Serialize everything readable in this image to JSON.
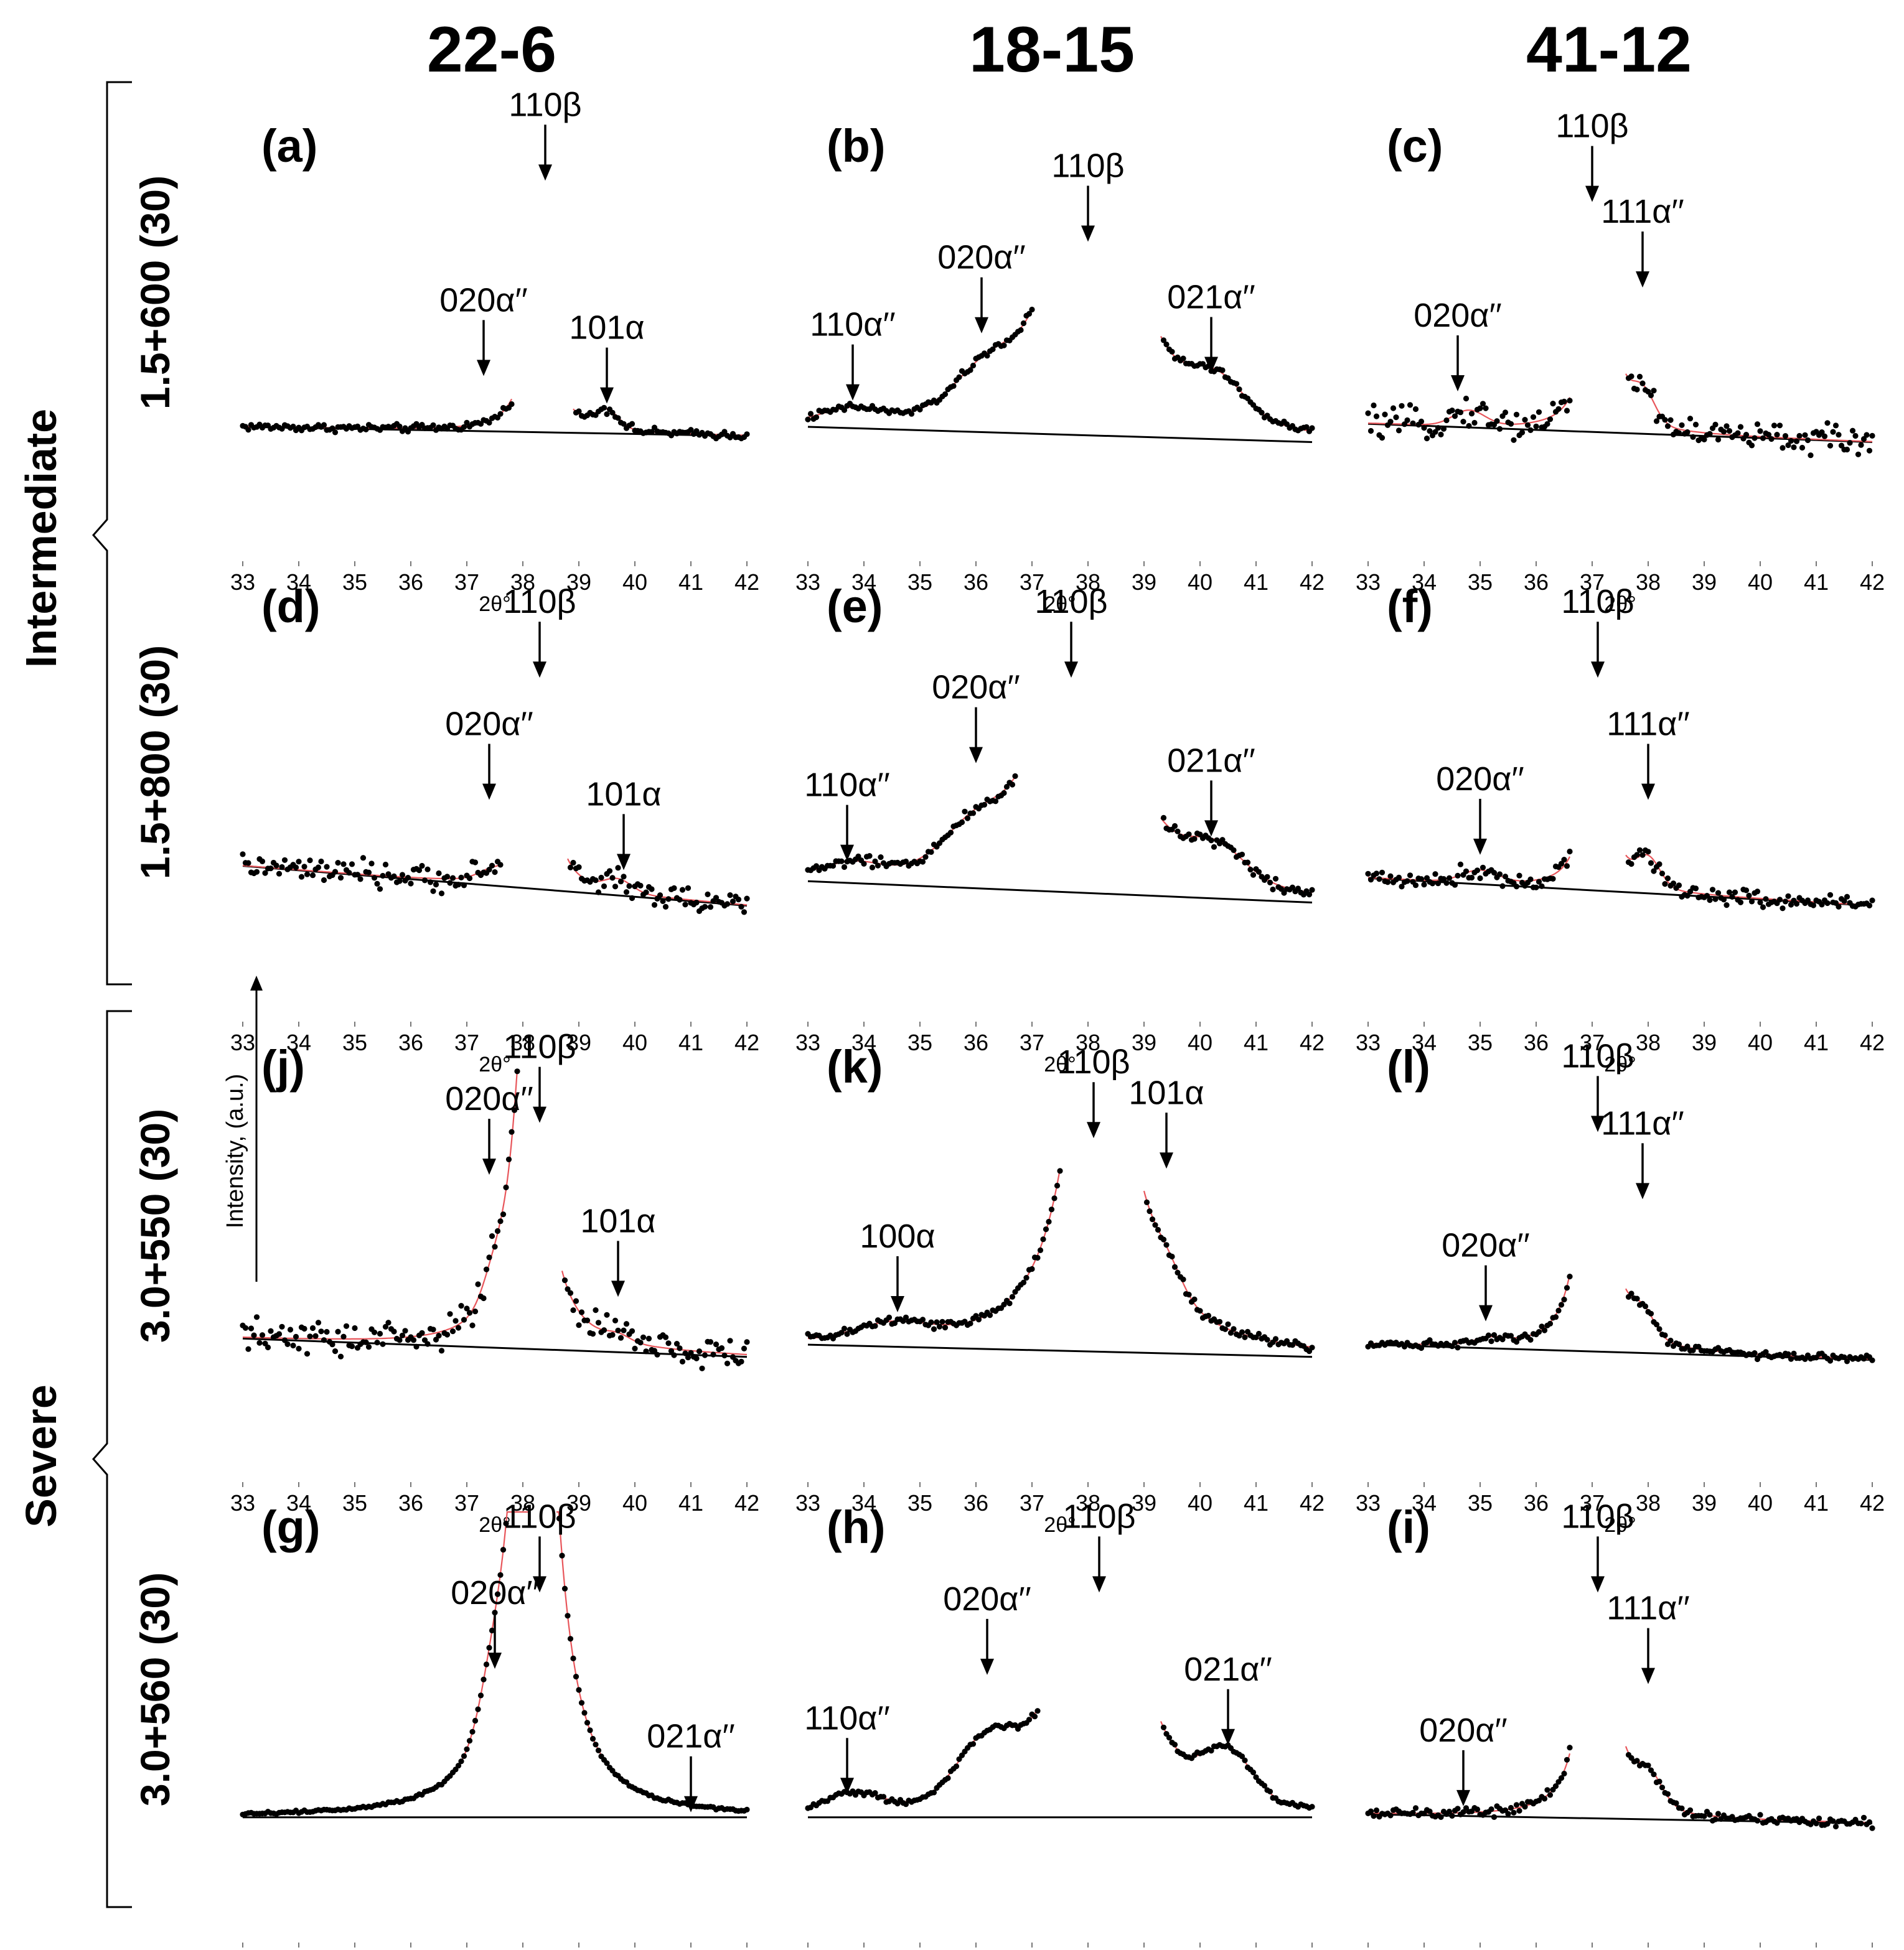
{
  "chart_data": {
    "type": "scatter",
    "layout": "3x4 grid of XRD patterns; columns = alloy, rows = treatment",
    "columns": [
      "22-6",
      "18-15",
      "41-12"
    ],
    "rows": [
      "1.5+600 (30)",
      "1.5+800 (30)",
      "3.0+550 (30)",
      "3.0+560 (30)"
    ],
    "groups": [
      {
        "name": "Intermediate",
        "rows": [
          0,
          1
        ]
      },
      {
        "name": "Severe",
        "rows": [
          2,
          3
        ]
      }
    ],
    "xlabel": "2θ°",
    "ylabel": "Intensity, (a.u.)",
    "x_ticks": [
      33,
      34,
      35,
      36,
      37,
      38,
      39,
      40,
      41,
      42
    ],
    "xlim": [
      33,
      42
    ],
    "series_style": {
      "points": "#000000",
      "fit": "#e8555a",
      "background": "#000000"
    },
    "panels": [
      {
        "id": "(a)",
        "row": 0,
        "col": 0,
        "kind": "A",
        "bg": [
          33,
          0.03,
          42,
          0.0
        ],
        "peak_x": 38.3,
        "peak_w": 0.18,
        "peak_h": 0.18,
        "gap": [
          37.8,
          38.9
        ],
        "extra_peaks": [
          {
            "x": 37.3,
            "h": 0.0,
            "w": 0.3
          },
          {
            "x": 39.5,
            "h": 0.06,
            "w": 0.3
          }
        ],
        "noise": 0.008,
        "annotations": [
          {
            "label": "110β",
            "x": 38.4,
            "y": 0.82
          },
          {
            "label": "020α′′",
            "x": 37.3,
            "y": 0.18
          },
          {
            "label": "101α",
            "x": 39.5,
            "y": 0.09
          }
        ]
      },
      {
        "id": "(b)",
        "row": 0,
        "col": 1,
        "kind": "B",
        "bg": [
          33,
          0.03,
          42,
          -0.02
        ],
        "peak_x": 38.1,
        "peak_w": 0.55,
        "peak_h": 0.35,
        "gap": [
          37.0,
          39.3
        ],
        "extra_peaks": [
          {
            "x": 33.8,
            "h": 0.04,
            "w": 0.7
          },
          {
            "x": 36.2,
            "h": 0.12,
            "w": 0.8
          },
          {
            "x": 40.3,
            "h": 0.12,
            "w": 0.7
          }
        ],
        "noise": 0.008,
        "annotations": [
          {
            "label": "110β",
            "x": 38.0,
            "y": 0.62
          },
          {
            "label": "110α′′",
            "x": 33.8,
            "y": 0.1
          },
          {
            "label": "020α′′",
            "x": 36.1,
            "y": 0.32
          },
          {
            "label": "021α′′",
            "x": 40.2,
            "y": 0.19
          }
        ]
      },
      {
        "id": "(c)",
        "row": 0,
        "col": 2,
        "kind": "C",
        "bg": [
          33,
          0.04,
          42,
          -0.02
        ],
        "peak_x": 37.15,
        "peak_w": 0.18,
        "peak_h": 0.22,
        "gap": [
          36.6,
          37.6
        ],
        "extra_peaks": [
          {
            "x": 34.8,
            "h": 0.05,
            "w": 0.4
          },
          {
            "x": 37.9,
            "h": 0.1,
            "w": 0.3
          }
        ],
        "noise": 0.03,
        "annotations": [
          {
            "label": "110β",
            "x": 37.0,
            "y": 0.75
          },
          {
            "label": "020α′′",
            "x": 34.6,
            "y": 0.13
          },
          {
            "label": "111α′′",
            "x": 37.9,
            "y": 0.47
          }
        ]
      },
      {
        "id": "(d)",
        "row": 1,
        "col": 0,
        "kind": "A",
        "bg": [
          33,
          0.1,
          42,
          -0.03
        ],
        "peak_x": 38.3,
        "peak_w": 0.18,
        "peak_h": 0.18,
        "gap": [
          37.6,
          38.8
        ],
        "extra_peaks": [
          {
            "x": 37.4,
            "h": 0.02,
            "w": 0.3
          },
          {
            "x": 39.7,
            "h": 0.04,
            "w": 0.35
          }
        ],
        "noise": 0.025,
        "annotations": [
          {
            "label": "110β",
            "x": 38.3,
            "y": 0.7
          },
          {
            "label": "020α′′",
            "x": 37.4,
            "y": 0.3
          },
          {
            "label": "101α",
            "x": 39.8,
            "y": 0.07
          }
        ]
      },
      {
        "id": "(e)",
        "row": 1,
        "col": 1,
        "kind": "B",
        "bg": [
          33,
          0.05,
          42,
          -0.02
        ],
        "peak_x": 37.9,
        "peak_w": 0.55,
        "peak_h": 0.35,
        "gap": [
          36.7,
          39.3
        ],
        "extra_peaks": [
          {
            "x": 33.8,
            "h": 0.04,
            "w": 0.7
          },
          {
            "x": 36.0,
            "h": 0.12,
            "w": 0.8
          },
          {
            "x": 40.3,
            "h": 0.1,
            "w": 0.7
          }
        ],
        "noise": 0.012,
        "annotations": [
          {
            "label": "110β",
            "x": 37.7,
            "y": 0.7
          },
          {
            "label": "110α′′",
            "x": 33.7,
            "y": 0.1
          },
          {
            "label": "020α′′",
            "x": 36.0,
            "y": 0.42
          },
          {
            "label": "021α′′",
            "x": 40.2,
            "y": 0.18
          }
        ]
      },
      {
        "id": "(f)",
        "row": 1,
        "col": 2,
        "kind": "C",
        "bg": [
          33,
          0.06,
          42,
          -0.03
        ],
        "peak_x": 37.1,
        "peak_w": 0.16,
        "peak_h": 0.22,
        "gap": [
          36.6,
          37.6
        ],
        "extra_peaks": [
          {
            "x": 35.0,
            "h": 0.04,
            "w": 0.45
          },
          {
            "x": 38.0,
            "h": 0.09,
            "w": 0.3
          }
        ],
        "noise": 0.018,
        "annotations": [
          {
            "label": "110β",
            "x": 37.1,
            "y": 0.7
          },
          {
            "label": "020α′′",
            "x": 35.0,
            "y": 0.12
          },
          {
            "label": "111α′′",
            "x": 38.0,
            "y": 0.3
          }
        ]
      },
      {
        "id": "(j)",
        "row": 2,
        "col": 0,
        "kind": "A",
        "bg": [
          33,
          0.06,
          42,
          0.0
        ],
        "peak_x": 38.1,
        "peak_w": 0.3,
        "peak_h": 0.25,
        "gap": [
          37.9,
          38.7
        ],
        "extra_peaks": [
          {
            "x": 37.5,
            "h": 0.08,
            "w": 0.3
          },
          {
            "x": 39.7,
            "h": 0.02,
            "w": 0.3
          }
        ],
        "noise": 0.035,
        "annotations": [
          {
            "label": "110β",
            "x": 38.3,
            "y": 0.75
          },
          {
            "label": "020α′′",
            "x": 37.4,
            "y": 0.58
          },
          {
            "label": "101α",
            "x": 39.7,
            "y": 0.18
          }
        ]
      },
      {
        "id": "(k)",
        "row": 2,
        "col": 1,
        "kind": "B",
        "bg": [
          33,
          0.04,
          42,
          0.0
        ],
        "peak_x": 38.2,
        "peak_w": 0.55,
        "peak_h": 0.3,
        "gap": [
          37.5,
          39.0
        ],
        "extra_peaks": [
          {
            "x": 34.5,
            "h": 0.05,
            "w": 0.9
          },
          {
            "x": 39.4,
            "h": 0.08,
            "w": 0.4
          }
        ],
        "noise": 0.01,
        "annotations": [
          {
            "label": "110β",
            "x": 38.1,
            "y": 0.7
          },
          {
            "label": "101α",
            "x": 39.4,
            "y": 0.6
          },
          {
            "label": "100α",
            "x": 34.6,
            "y": 0.13
          }
        ]
      },
      {
        "id": "(l)",
        "row": 2,
        "col": 2,
        "kind": "C",
        "bg": [
          33,
          0.04,
          42,
          -0.01
        ],
        "peak_x": 37.05,
        "peak_w": 0.22,
        "peak_h": 0.25,
        "gap": [
          36.6,
          37.6
        ],
        "extra_peaks": [
          {
            "x": 35.2,
            "h": 0.02,
            "w": 0.4
          },
          {
            "x": 37.9,
            "h": 0.08,
            "w": 0.3
          }
        ],
        "noise": 0.008,
        "annotations": [
          {
            "label": "110β",
            "x": 37.1,
            "y": 0.72
          },
          {
            "label": "020α′′",
            "x": 35.1,
            "y": 0.1
          },
          {
            "label": "111α′′",
            "x": 37.9,
            "y": 0.5
          }
        ]
      },
      {
        "id": "(g)",
        "row": 3,
        "col": 0,
        "kind": "A",
        "bg": [
          33,
          0.0,
          42,
          0.0
        ],
        "peak_x": 38.2,
        "peak_w": 0.35,
        "peak_h": 0.5,
        "gap": [
          38.1,
          38.6
        ],
        "extra_peaks": [
          {
            "x": 37.5,
            "h": 0.15,
            "w": 0.35
          },
          {
            "x": 41.0,
            "h": 0.0,
            "w": 0.3
          }
        ],
        "noise": 0.003,
        "annotations": [
          {
            "label": "110β",
            "x": 38.3,
            "y": 0.72
          },
          {
            "label": "020α′′",
            "x": 37.5,
            "y": 0.47
          },
          {
            "label": "021α′′",
            "x": 41.0,
            "y": 0.0
          }
        ]
      },
      {
        "id": "(h)",
        "row": 3,
        "col": 1,
        "kind": "B",
        "bg": [
          33,
          0.0,
          42,
          0.0
        ],
        "peak_x": 38.2,
        "peak_w": 0.5,
        "peak_h": 0.35,
        "gap": [
          37.1,
          39.3
        ],
        "extra_peaks": [
          {
            "x": 33.8,
            "h": 0.06,
            "w": 0.7
          },
          {
            "x": 36.2,
            "h": 0.18,
            "w": 0.75
          },
          {
            "x": 40.5,
            "h": 0.15,
            "w": 0.6
          }
        ],
        "noise": 0.006,
        "annotations": [
          {
            "label": "110β",
            "x": 38.2,
            "y": 0.72
          },
          {
            "label": "110α′′",
            "x": 33.7,
            "y": 0.06
          },
          {
            "label": "020α′′",
            "x": 36.2,
            "y": 0.45
          },
          {
            "label": "021α′′",
            "x": 40.5,
            "y": 0.22
          }
        ]
      },
      {
        "id": "(i)",
        "row": 3,
        "col": 2,
        "kind": "C",
        "bg": [
          33,
          0.01,
          42,
          -0.02
        ],
        "peak_x": 37.1,
        "peak_w": 0.22,
        "peak_h": 0.25,
        "gap": [
          36.6,
          37.6
        ],
        "extra_peaks": [
          {
            "x": 34.7,
            "h": 0.0,
            "w": 0.4
          },
          {
            "x": 38.0,
            "h": 0.1,
            "w": 0.35
          }
        ],
        "noise": 0.01,
        "annotations": [
          {
            "label": "110β",
            "x": 37.1,
            "y": 0.72
          },
          {
            "label": "020α′′",
            "x": 34.7,
            "y": 0.02
          },
          {
            "label": "111α′′",
            "x": 38.0,
            "y": 0.42
          }
        ]
      }
    ]
  }
}
